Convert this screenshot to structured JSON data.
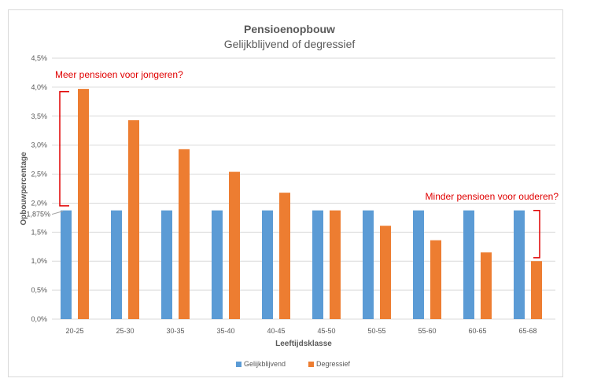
{
  "chart_data": {
    "type": "bar",
    "title": "Pensioenopbouw",
    "subtitle": "Gelijkblijvend of degressief",
    "xlabel": "Leeftijdsklasse",
    "ylabel": "Opbouwpercentage",
    "ylim": [
      0,
      4.5
    ],
    "yticks": [
      "0,0%",
      "0,5%",
      "1,0%",
      "1,5%",
      "2,0%",
      "2,5%",
      "3,0%",
      "3,5%",
      "4,0%",
      "4,5%"
    ],
    "categories": [
      "20-25",
      "25-30",
      "30-35",
      "35-40",
      "40-45",
      "45-50",
      "50-55",
      "55-60",
      "60-65",
      "65-68"
    ],
    "series": [
      {
        "name": "Gelijkblijvend",
        "color": "#5b9bd5",
        "values": [
          1.875,
          1.875,
          1.875,
          1.875,
          1.875,
          1.875,
          1.875,
          1.875,
          1.875,
          1.875
        ]
      },
      {
        "name": "Degressief",
        "color": "#ed7d31",
        "values": [
          3.97,
          3.43,
          2.93,
          2.54,
          2.18,
          1.875,
          1.61,
          1.36,
          1.15,
          1.0
        ]
      }
    ],
    "reference_label": "1,875%",
    "reference_value": 1.875,
    "grid": true,
    "legend_position": "bottom",
    "annotations": [
      {
        "text": "Meer pensioen voor jongeren?",
        "from": 1.98,
        "to": 3.95
      },
      {
        "text": "Minder pensioen voor ouderen?",
        "from": 1.1,
        "to": 1.86
      }
    ],
    "annotation_color": "#e00000"
  }
}
